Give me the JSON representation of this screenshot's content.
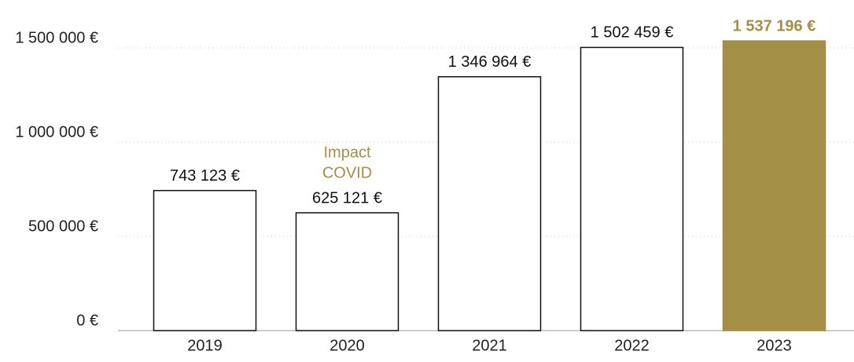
{
  "chart_data": {
    "type": "bar",
    "categories": [
      "2019",
      "2020",
      "2021",
      "2022",
      "2023"
    ],
    "values": [
      743123,
      625121,
      1346964,
      1502459,
      1537196
    ],
    "value_labels": [
      "743 123 €",
      "625 121 €",
      "1 346 964 €",
      "1 502 459 €",
      "1 537 196 €"
    ],
    "colors": [
      "#ffffff",
      "#ffffff",
      "#ffffff",
      "#ffffff",
      "#a38f46"
    ],
    "label_colors": [
      "#111111",
      "#111111",
      "#111111",
      "#111111",
      "#a38f46"
    ],
    "annotation": {
      "category": 1,
      "lines": [
        "Impact",
        "COVID"
      ],
      "color": "#a38f46"
    },
    "ylim": [
      0,
      1600000
    ],
    "yticks": [
      {
        "value": 0,
        "label": "0 €"
      },
      {
        "value": 500000,
        "label": "500 000 €"
      },
      {
        "value": 1000000,
        "label": "1 000 000 €"
      },
      {
        "value": 1500000,
        "label": "1 500 000 €"
      }
    ],
    "grid": true
  }
}
